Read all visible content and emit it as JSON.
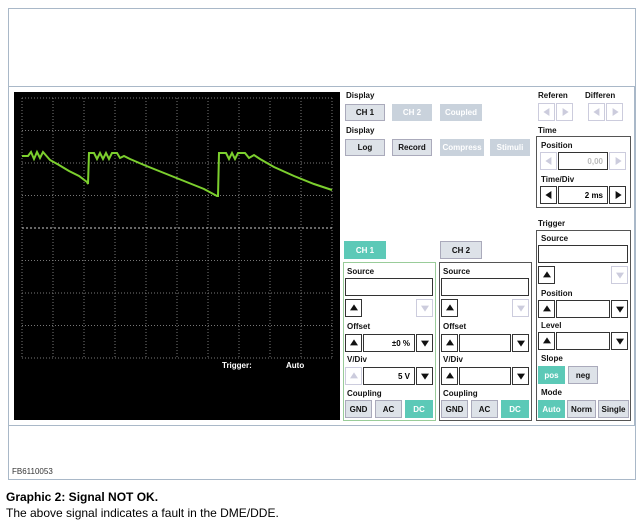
{
  "scope": {
    "trigger_label": "Trigger:",
    "trigger_value": "Auto"
  },
  "display1": {
    "title": "Display",
    "buttons": [
      "CH 1",
      "CH 2",
      "Coupled"
    ]
  },
  "display2": {
    "title": "Display",
    "buttons": [
      "Log",
      "Record",
      "Compress",
      "Stimuli"
    ]
  },
  "reference": {
    "title": "Referen"
  },
  "difference": {
    "title": "Differen"
  },
  "time": {
    "title": "Time",
    "position_label": "Position",
    "position_value": "0,00",
    "timediv_label": "Time/Div",
    "timediv_value": "2 ms"
  },
  "channels": [
    {
      "tab": "CH 1",
      "source_label": "Source",
      "offset_label": "Offset",
      "offset_value": "±0 %",
      "vdiv_label": "V/Div",
      "vdiv_value": "5 V",
      "coupling_label": "Coupling",
      "coupling_buttons": [
        "GND",
        "AC",
        "DC"
      ]
    },
    {
      "tab": "CH 2",
      "source_label": "Source",
      "offset_label": "Offset",
      "vdiv_label": "V/Div",
      "coupling_label": "Coupling",
      "coupling_buttons": [
        "GND",
        "AC",
        "DC"
      ]
    }
  ],
  "trigger": {
    "title": "Trigger",
    "source_label": "Source",
    "position_label": "Position",
    "level_label": "Level",
    "slope_label": "Slope",
    "slope_buttons": [
      "pos",
      "neg"
    ],
    "mode_label": "Mode",
    "mode_buttons": [
      "Auto",
      "Norm",
      "Single"
    ]
  },
  "figure_id": "FB6110053",
  "caption": {
    "title": "Graphic 2: Signal NOT OK.",
    "text": "The above signal indicates a fault in the DME/DDE."
  }
}
